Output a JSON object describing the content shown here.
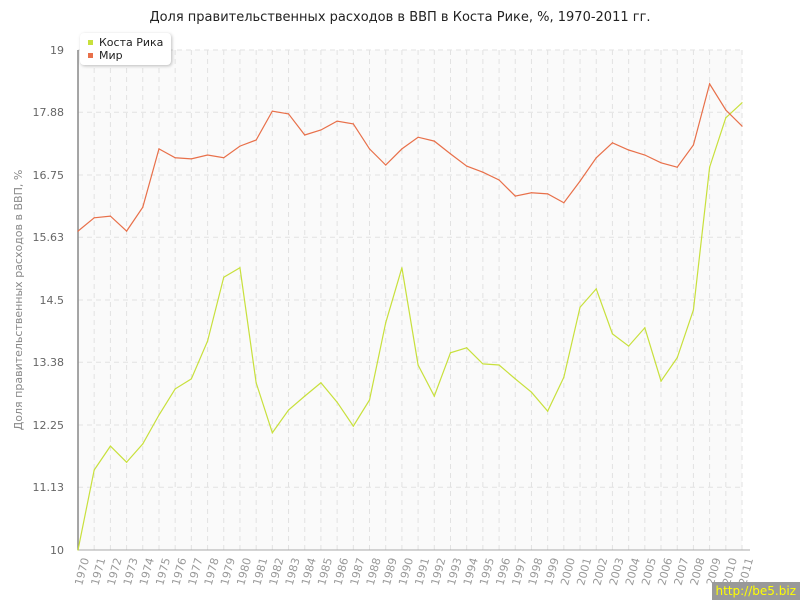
{
  "chart_data": {
    "type": "line",
    "title": "Доля правительственных расходов в ВВП в Коста Рике, %, 1970-2011 гг.",
    "xlabel": "",
    "ylabel": "Доля правительственных расходов в ВВП, %",
    "ylim": [
      10,
      19
    ],
    "yticks": [
      "10",
      "11.13",
      "12.25",
      "13.38",
      "14.5",
      "15.63",
      "16.75",
      "17.88",
      "19"
    ],
    "grid": true,
    "legend_position": "top-left",
    "x": [
      1970,
      1971,
      1972,
      1973,
      1974,
      1975,
      1976,
      1977,
      1978,
      1979,
      1980,
      1981,
      1982,
      1983,
      1984,
      1985,
      1986,
      1987,
      1988,
      1989,
      1990,
      1991,
      1992,
      1993,
      1994,
      1995,
      1996,
      1997,
      1998,
      1999,
      2000,
      2001,
      2002,
      2003,
      2004,
      2005,
      2006,
      2007,
      2008,
      2009,
      2010,
      2011
    ],
    "series": [
      {
        "name": "Коста Рика",
        "color": "#c8e03c",
        "values": [
          10.0,
          11.44,
          11.87,
          11.58,
          11.91,
          12.43,
          12.9,
          13.08,
          13.76,
          14.91,
          15.08,
          13.01,
          12.11,
          12.52,
          12.77,
          13.01,
          12.66,
          12.23,
          12.7,
          14.09,
          15.08,
          13.33,
          12.77,
          13.55,
          13.64,
          13.35,
          13.33,
          13.08,
          12.84,
          12.5,
          13.11,
          14.37,
          14.7,
          13.89,
          13.67,
          14.0,
          13.04,
          13.46,
          14.32,
          16.89,
          17.78,
          18.05
        ]
      },
      {
        "name": "Мир",
        "color": "#e8704a",
        "values": [
          15.74,
          15.98,
          16.01,
          15.74,
          16.17,
          17.22,
          17.06,
          17.04,
          17.11,
          17.06,
          17.27,
          17.38,
          17.9,
          17.85,
          17.47,
          17.56,
          17.72,
          17.67,
          17.22,
          16.93,
          17.22,
          17.43,
          17.36,
          17.13,
          16.91,
          16.8,
          16.66,
          16.37,
          16.43,
          16.41,
          16.25,
          16.64,
          17.06,
          17.33,
          17.2,
          17.11,
          16.97,
          16.89,
          17.29,
          18.39,
          17.92,
          17.63
        ]
      }
    ]
  },
  "watermark": "http://be5.biz"
}
